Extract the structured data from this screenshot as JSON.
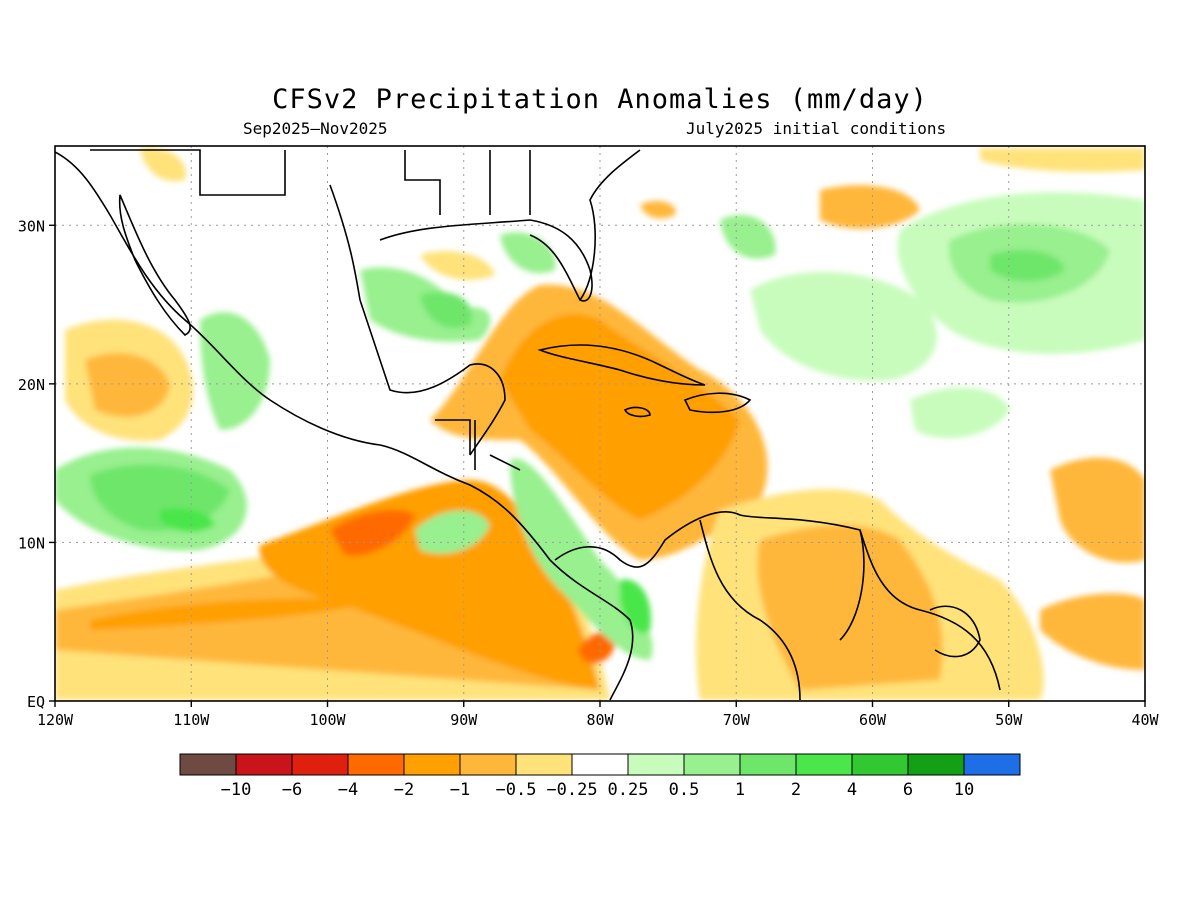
{
  "title": "CFSv2 Precipitation Anomalies (mm/day)",
  "period": "Sep2025–Nov2025",
  "init": "July2025 initial conditions",
  "axes": {
    "lon_labels": [
      "120W",
      "110W",
      "100W",
      "90W",
      "80W",
      "70W",
      "60W",
      "50W",
      "40W"
    ],
    "lat_labels": [
      "30N",
      "20N",
      "10N",
      "EQ"
    ]
  },
  "map_extent": {
    "lon": [
      -120,
      -40
    ],
    "lat": [
      0,
      35
    ]
  },
  "colorbar": {
    "colors": [
      "#6e4a42",
      "#c8141a",
      "#e0200e",
      "#ff6a00",
      "#ff9f00",
      "#ffb73a",
      "#ffe27a",
      "#ffffff",
      "#c8fcbc",
      "#98f08e",
      "#6ee66a",
      "#4ae64a",
      "#32c832",
      "#14a014",
      "#1e6ee6"
    ],
    "labels": [
      "−10",
      "−6",
      "−4",
      "−2",
      "−1",
      "−0.5",
      "−0.25",
      "0.25",
      "0.5",
      "1",
      "2",
      "4",
      "6",
      "10"
    ]
  }
}
